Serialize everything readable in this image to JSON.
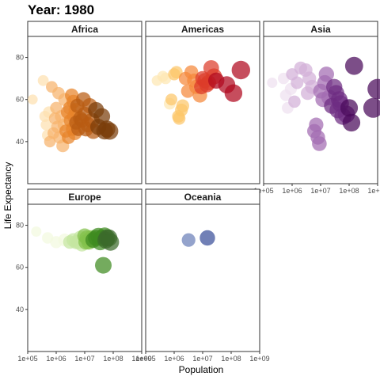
{
  "chart_data": {
    "type": "scatter",
    "title": "Year: 1980",
    "xlabel": "Population",
    "ylabel": "Life Expectancy",
    "x_scale": "log10",
    "xlim": [
      100000,
      1000000000
    ],
    "ylim": [
      20,
      90
    ],
    "x_ticks": [
      100000,
      1000000,
      10000000,
      100000000,
      1000000000
    ],
    "x_tick_labels": [
      "1e+05",
      "1e+06",
      "1e+07",
      "1e+08",
      "1e+09"
    ],
    "y_ticks": [
      40,
      60,
      80
    ],
    "y_tick_labels": [
      "40",
      "60",
      "80"
    ],
    "grid": false,
    "legend": "none",
    "facets": [
      {
        "name": "Africa",
        "colors": [
          "#fde0b0",
          "#f7b36c",
          "#e8842a",
          "#b85c12",
          "#7a3d0a"
        ],
        "points": [
          [
            150000,
            60
          ],
          [
            350000,
            69
          ],
          [
            400000,
            52
          ],
          [
            450000,
            48
          ],
          [
            500000,
            43
          ],
          [
            550000,
            54
          ],
          [
            600000,
            40
          ],
          [
            700000,
            66
          ],
          [
            800000,
            44
          ],
          [
            900000,
            51
          ],
          [
            1000000,
            56
          ],
          [
            1100000,
            47
          ],
          [
            1200000,
            63
          ],
          [
            1300000,
            42
          ],
          [
            1500000,
            52
          ],
          [
            1700000,
            38
          ],
          [
            1900000,
            48
          ],
          [
            2000000,
            60
          ],
          [
            2200000,
            45
          ],
          [
            2500000,
            54
          ],
          [
            2700000,
            42
          ],
          [
            3000000,
            56
          ],
          [
            3200000,
            50
          ],
          [
            3500000,
            62
          ],
          [
            3800000,
            46
          ],
          [
            4000000,
            59
          ],
          [
            4200000,
            52
          ],
          [
            4500000,
            44
          ],
          [
            4800000,
            55
          ],
          [
            5000000,
            49
          ],
          [
            5500000,
            57
          ],
          [
            6000000,
            46
          ],
          [
            7000000,
            51
          ],
          [
            8000000,
            50
          ],
          [
            9000000,
            60
          ],
          [
            10000000,
            53
          ],
          [
            11000000,
            46
          ],
          [
            13000000,
            48
          ],
          [
            15000000,
            57
          ],
          [
            18000000,
            50
          ],
          [
            20000000,
            45
          ],
          [
            25000000,
            55
          ],
          [
            30000000,
            47
          ],
          [
            40000000,
            52
          ],
          [
            50000000,
            45
          ],
          [
            60000000,
            46
          ],
          [
            75000000,
            45
          ]
        ]
      },
      {
        "name": "Americas",
        "colors": [
          "#fee7b3",
          "#fcc66a",
          "#f5883a",
          "#dc3b2a",
          "#b0091f"
        ],
        "points": [
          [
            250000,
            69
          ],
          [
            400000,
            71
          ],
          [
            500000,
            70
          ],
          [
            700000,
            58
          ],
          [
            800000,
            60
          ],
          [
            1000000,
            72
          ],
          [
            1200000,
            73
          ],
          [
            1400000,
            52
          ],
          [
            1500000,
            51
          ],
          [
            1800000,
            55
          ],
          [
            2000000,
            57
          ],
          [
            2500000,
            70
          ],
          [
            3000000,
            64
          ],
          [
            4000000,
            73
          ],
          [
            5000000,
            69
          ],
          [
            6000000,
            66
          ],
          [
            8000000,
            62
          ],
          [
            9000000,
            66
          ],
          [
            10000000,
            70
          ],
          [
            12000000,
            69
          ],
          [
            14000000,
            67
          ],
          [
            16000000,
            68
          ],
          [
            20000000,
            75
          ],
          [
            25000000,
            71
          ],
          [
            30000000,
            69
          ],
          [
            70000000,
            67
          ],
          [
            120000000,
            63
          ],
          [
            220000000,
            74
          ]
        ]
      },
      {
        "name": "Asia",
        "colors": [
          "#efe1f0",
          "#d2b0d8",
          "#a26bb2",
          "#6d2c82",
          "#4a0a5a"
        ],
        "points": [
          [
            200000,
            68
          ],
          [
            500000,
            70
          ],
          [
            600000,
            62
          ],
          [
            700000,
            56
          ],
          [
            900000,
            65
          ],
          [
            1000000,
            72
          ],
          [
            1200000,
            59
          ],
          [
            1500000,
            68
          ],
          [
            2000000,
            75
          ],
          [
            3000000,
            74
          ],
          [
            3500000,
            63
          ],
          [
            4000000,
            70
          ],
          [
            5000000,
            66
          ],
          [
            6000000,
            45
          ],
          [
            7000000,
            48
          ],
          [
            8000000,
            42
          ],
          [
            9000000,
            39
          ],
          [
            10000000,
            64
          ],
          [
            12000000,
            60
          ],
          [
            14000000,
            68
          ],
          [
            16000000,
            72
          ],
          [
            20000000,
            61
          ],
          [
            25000000,
            57
          ],
          [
            30000000,
            66
          ],
          [
            35000000,
            63
          ],
          [
            40000000,
            55
          ],
          [
            45000000,
            60
          ],
          [
            50000000,
            58
          ],
          [
            60000000,
            52
          ],
          [
            80000000,
            53
          ],
          [
            100000000,
            56
          ],
          [
            120000000,
            49
          ],
          [
            150000000,
            76
          ],
          [
            700000000,
            56
          ],
          [
            1000000000,
            65
          ]
        ]
      },
      {
        "name": "Europe",
        "colors": [
          "#f2fadf",
          "#c5e6a1",
          "#82c04b",
          "#3e8a20",
          "#3b6b2b"
        ],
        "points": [
          [
            200000,
            77
          ],
          [
            500000,
            74
          ],
          [
            1000000,
            72
          ],
          [
            2000000,
            73
          ],
          [
            3000000,
            72
          ],
          [
            4000000,
            73
          ],
          [
            5000000,
            72
          ],
          [
            6000000,
            72
          ],
          [
            7000000,
            74
          ],
          [
            8000000,
            71
          ],
          [
            9000000,
            73
          ],
          [
            10000000,
            75
          ],
          [
            11000000,
            72
          ],
          [
            12000000,
            74
          ],
          [
            14000000,
            72
          ],
          [
            15000000,
            73
          ],
          [
            17000000,
            74
          ],
          [
            20000000,
            73
          ],
          [
            25000000,
            74
          ],
          [
            30000000,
            75
          ],
          [
            35000000,
            72
          ],
          [
            40000000,
            74
          ],
          [
            50000000,
            75
          ],
          [
            55000000,
            73
          ],
          [
            60000000,
            74
          ],
          [
            70000000,
            74
          ],
          [
            80000000,
            72
          ],
          [
            45000000,
            61
          ]
        ]
      },
      {
        "name": "Oceania",
        "colors": [
          "#6b80b9",
          "#3a4f9a"
        ],
        "points": [
          [
            3200000,
            73
          ],
          [
            14700000,
            74
          ]
        ]
      }
    ]
  }
}
